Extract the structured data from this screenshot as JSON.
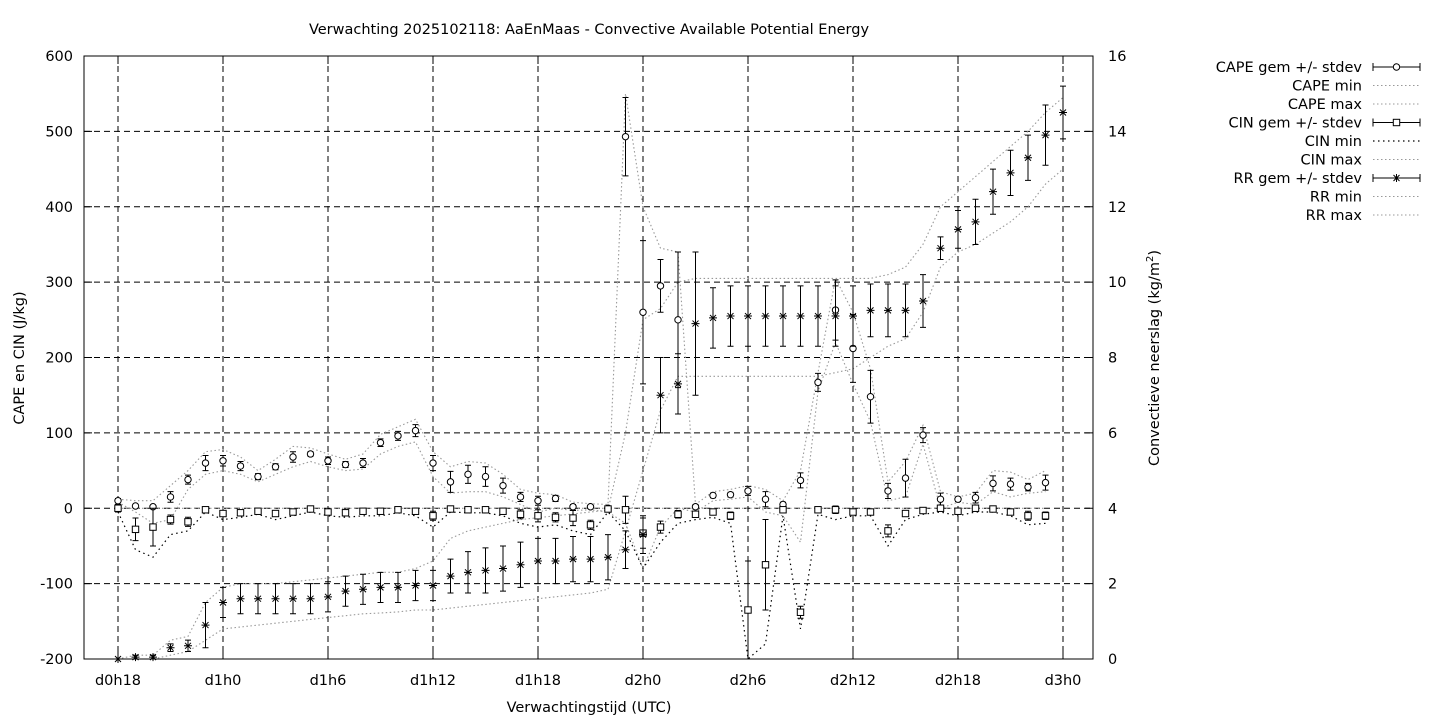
{
  "chart_data": {
    "type": "line",
    "title": "Verwachting 2025102118: AaEnMaas - Convective Available Potential Energy",
    "xlabel": "Verwachtingstijd (UTC)",
    "ylabel": "CAPE en CIN (J/kg)",
    "y2label": "Convectieve neerslag (kg/m",
    "y2label_sup": "2",
    "y2label_end": ")",
    "xlim": [
      18,
      75
    ],
    "ylim": [
      -200,
      600
    ],
    "y2lim": [
      0,
      16
    ],
    "x_ticks": [
      18,
      24,
      30,
      36,
      42,
      48,
      54,
      60,
      66,
      72
    ],
    "x_tick_labels": [
      "d0h18",
      "d1h0",
      "d1h6",
      "d1h12",
      "d1h18",
      "d2h0",
      "d2h6",
      "d2h12",
      "d2h18",
      "d3h0"
    ],
    "y_ticks": [
      -200,
      -100,
      0,
      100,
      200,
      300,
      400,
      500,
      600
    ],
    "y_tick_labels": [
      "-200",
      "-100",
      "0",
      "100",
      "200",
      "300",
      "400",
      "500",
      "600"
    ],
    "y2_ticks": [
      0,
      2,
      4,
      6,
      8,
      10,
      12,
      14,
      16
    ],
    "y2_tick_labels": [
      "0",
      "2",
      "4",
      "6",
      "8",
      "10",
      "12",
      "14",
      "16"
    ],
    "grid": true,
    "legend_position": "outside-right",
    "legend": [
      {
        "label": "CAPE gem +/- stdev",
        "style": "errorbar-circle"
      },
      {
        "label": "CAPE min",
        "style": "dotted"
      },
      {
        "label": "CAPE max",
        "style": "dotted"
      },
      {
        "label": "CIN gem +/- stdev",
        "style": "errorbar-square"
      },
      {
        "label": "CIN min",
        "style": "dotted-dark"
      },
      {
        "label": "CIN max",
        "style": "dotted"
      },
      {
        "label": "RR gem +/- stdev",
        "style": "errorbar-star"
      },
      {
        "label": "RR min",
        "style": "dotted"
      },
      {
        "label": "RR max",
        "style": "dotted"
      }
    ],
    "x": [
      18,
      19,
      20,
      21,
      22,
      23,
      24,
      25,
      26,
      27,
      28,
      29,
      30,
      31,
      32,
      33,
      34,
      35,
      36,
      37,
      38,
      39,
      40,
      41,
      42,
      43,
      44,
      45,
      46,
      47,
      48,
      49,
      50,
      51,
      52,
      53,
      54,
      55,
      56,
      57,
      58,
      59,
      60,
      61,
      62,
      63,
      64,
      65,
      66,
      67,
      68,
      69,
      70,
      71,
      72
    ],
    "series": [
      {
        "name": "CAPE gem +/- stdev",
        "axis": "y",
        "mean": [
          10,
          3,
          2,
          15,
          38,
          60,
          63,
          56,
          42,
          55,
          68,
          72,
          63,
          58,
          60,
          87,
          96,
          103,
          60,
          35,
          45,
          42,
          30,
          15,
          10,
          13,
          2,
          2,
          0,
          493,
          260,
          295,
          250,
          2,
          17,
          18,
          23,
          12,
          5,
          37,
          167,
          263,
          212,
          148,
          23,
          40,
          97,
          12,
          12,
          14,
          33,
          32,
          28,
          34,
          null
        ],
        "stdev": [
          3,
          2,
          2,
          7,
          6,
          10,
          7,
          6,
          4,
          4,
          7,
          3,
          5,
          4,
          6,
          5,
          6,
          8,
          10,
          14,
          12,
          13,
          10,
          6,
          6,
          4,
          3,
          2,
          2,
          52,
          95,
          35,
          90,
          3,
          3,
          3,
          6,
          10,
          3,
          10,
          12,
          40,
          45,
          35,
          10,
          25,
          10,
          8,
          3,
          7,
          10,
          8,
          5,
          10,
          null
        ],
        "min": [
          8,
          -5,
          -20,
          -15,
          25,
          45,
          50,
          45,
          35,
          45,
          55,
          62,
          55,
          50,
          52,
          72,
          82,
          88,
          42,
          20,
          22,
          22,
          15,
          5,
          -5,
          0,
          -3,
          -2,
          -5,
          -20,
          -80,
          -25,
          0,
          -5,
          10,
          12,
          15,
          -5,
          -10,
          -45,
          155,
          220,
          165,
          115,
          10,
          15,
          85,
          0,
          8,
          5,
          22,
          15,
          20,
          22,
          null
        ],
        "max": [
          12,
          10,
          10,
          30,
          50,
          75,
          78,
          68,
          50,
          65,
          82,
          80,
          72,
          65,
          72,
          98,
          108,
          118,
          75,
          55,
          62,
          60,
          45,
          25,
          20,
          18,
          8,
          6,
          5,
          550,
          400,
          345,
          340,
          5,
          22,
          25,
          30,
          25,
          10,
          50,
          180,
          305,
          260,
          185,
          35,
          62,
          110,
          22,
          15,
          20,
          50,
          48,
          38,
          50,
          null
        ]
      },
      {
        "name": "CIN gem +/- stdev",
        "axis": "y",
        "mean": [
          0,
          -28,
          -25,
          -15,
          -18,
          -2,
          -7,
          -6,
          -4,
          -7,
          -5,
          -1,
          -5,
          -6,
          -4,
          -4,
          -2,
          -4,
          -10,
          -1,
          -2,
          -2,
          -4,
          -8,
          -10,
          -12,
          -13,
          -22,
          -1,
          -2,
          -33,
          -25,
          -8,
          -8,
          -5,
          -10,
          -135,
          -75,
          -2,
          -138,
          -2,
          -2,
          -5,
          -5,
          -30,
          -7,
          -3,
          0,
          -4,
          0,
          -1,
          -5,
          -10,
          -10,
          null
        ],
        "stdev": [
          5,
          15,
          25,
          6,
          6,
          2,
          4,
          3,
          2,
          3,
          2,
          2,
          2,
          2,
          2,
          2,
          2,
          2,
          6,
          2,
          2,
          2,
          3,
          6,
          8,
          6,
          10,
          6,
          2,
          18,
          20,
          8,
          5,
          3,
          3,
          5,
          65,
          60,
          2,
          8,
          2,
          5,
          2,
          2,
          8,
          3,
          2,
          2,
          2,
          2,
          2,
          3,
          6,
          5,
          null
        ],
        "min": [
          -5,
          -55,
          -65,
          -35,
          -30,
          -5,
          -15,
          -12,
          -8,
          -15,
          -10,
          -5,
          -10,
          -12,
          -10,
          -10,
          -6,
          -10,
          -25,
          -5,
          -6,
          -6,
          -10,
          -20,
          -25,
          -22,
          -30,
          -35,
          -5,
          -30,
          -80,
          -45,
          -20,
          -15,
          -12,
          -20,
          -200,
          -180,
          -10,
          -160,
          -8,
          -15,
          -10,
          -10,
          -50,
          -15,
          -8,
          -5,
          -10,
          -5,
          -5,
          -10,
          -22,
          -20,
          null
        ],
        "max": [
          0,
          0,
          0,
          0,
          0,
          0,
          0,
          0,
          0,
          0,
          0,
          0,
          0,
          0,
          0,
          0,
          0,
          0,
          0,
          0,
          0,
          0,
          0,
          0,
          0,
          0,
          0,
          0,
          0,
          0,
          0,
          0,
          0,
          0,
          0,
          0,
          0,
          0,
          0,
          0,
          0,
          0,
          0,
          0,
          0,
          0,
          0,
          0,
          0,
          0,
          0,
          0,
          0,
          0,
          null
        ]
      },
      {
        "name": "RR gem +/- stdev",
        "axis": "y2",
        "mean": [
          0,
          0.05,
          0.05,
          0.3,
          0.35,
          0.9,
          1.5,
          1.6,
          1.6,
          1.6,
          1.6,
          1.6,
          1.65,
          1.8,
          1.85,
          1.9,
          1.9,
          1.95,
          1.95,
          2.2,
          2.3,
          2.35,
          2.4,
          2.5,
          2.6,
          2.6,
          2.65,
          2.65,
          2.7,
          2.9,
          3.3,
          7.0,
          7.3,
          8.9,
          9.05,
          9.1,
          9.1,
          9.1,
          9.1,
          9.1,
          9.1,
          9.1,
          9.1,
          9.25,
          9.25,
          9.25,
          9.5,
          10.9,
          11.4,
          11.6,
          12.4,
          12.9,
          13.3,
          13.9,
          14.5
        ],
        "stdev": [
          0,
          0.05,
          0.05,
          0.1,
          0.15,
          0.6,
          0.4,
          0.4,
          0.4,
          0.4,
          0.4,
          0.4,
          0.4,
          0.4,
          0.4,
          0.4,
          0.4,
          0.4,
          0.4,
          0.45,
          0.55,
          0.6,
          0.6,
          0.6,
          0.6,
          0.6,
          0.6,
          0.6,
          0.6,
          0.5,
          0.5,
          1.0,
          0.8,
          1.9,
          0.8,
          0.8,
          0.8,
          0.8,
          0.8,
          0.8,
          0.8,
          0.8,
          0.8,
          0.7,
          0.7,
          0.7,
          0.7,
          0.3,
          0.5,
          0.6,
          0.6,
          0.6,
          0.6,
          0.8,
          0.7
        ],
        "min": [
          0,
          0,
          0,
          0.1,
          0.2,
          0.5,
          0.8,
          0.85,
          0.9,
          0.95,
          1.0,
          1.05,
          1.1,
          1.15,
          1.2,
          1.22,
          1.25,
          1.3,
          1.3,
          1.35,
          1.4,
          1.45,
          1.5,
          1.55,
          1.6,
          1.65,
          1.7,
          1.75,
          1.85,
          3.4,
          5.0,
          6.6,
          7.5,
          7.5,
          7.5,
          7.5,
          7.5,
          7.5,
          7.5,
          7.5,
          7.5,
          7.6,
          7.7,
          8.0,
          8.3,
          8.5,
          9.2,
          10.4,
          10.8,
          11.0,
          11.3,
          11.6,
          12.0,
          12.6,
          13.0
        ],
        "max": [
          0,
          0.1,
          0.1,
          0.5,
          0.6,
          1.5,
          1.9,
          2.0,
          2.0,
          2.0,
          2.05,
          2.1,
          2.15,
          2.2,
          2.25,
          2.3,
          2.3,
          2.4,
          2.6,
          3.2,
          3.4,
          3.5,
          3.6,
          3.7,
          3.75,
          3.8,
          3.85,
          3.9,
          3.95,
          6.0,
          9.0,
          9.3,
          10.0,
          10.1,
          10.1,
          10.1,
          10.1,
          10.1,
          10.1,
          10.1,
          10.1,
          10.1,
          10.1,
          10.1,
          10.2,
          10.4,
          11.0,
          12.0,
          12.4,
          12.8,
          13.2,
          13.6,
          14.0,
          14.5,
          14.9
        ]
      }
    ]
  }
}
